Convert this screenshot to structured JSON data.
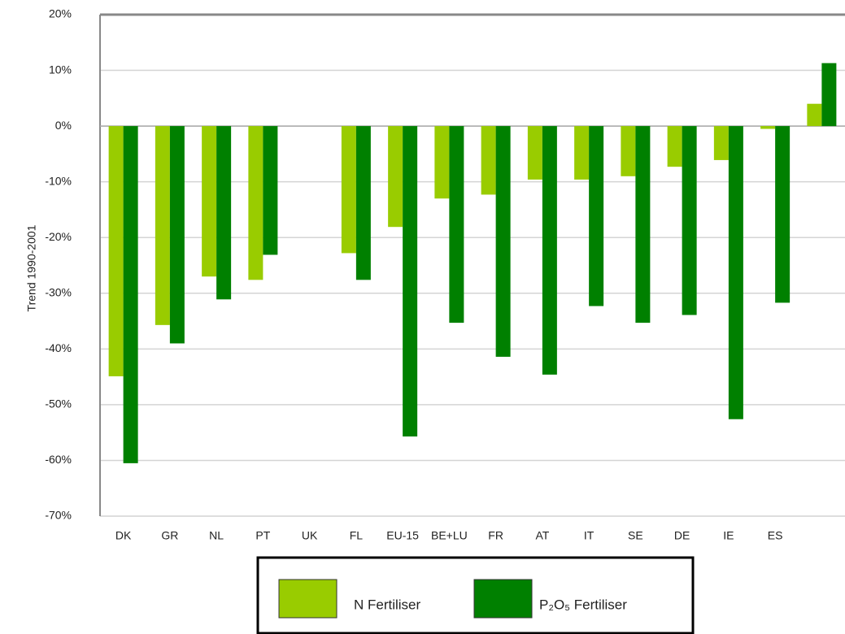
{
  "chart_data": {
    "type": "bar",
    "y_label": "Trend 1990-2001",
    "categories": [
      "DK",
      "GR",
      "NL",
      "PT",
      "UK",
      "FL",
      "EU-15",
      "BE+LU",
      "FR",
      "AT",
      "IT",
      "SE",
      "DE",
      "IE",
      "ES",
      null
    ],
    "series": [
      {
        "name": "N Fertiliser",
        "color": "#99cc00",
        "values": [
          -44.9,
          -35.7,
          -27.0,
          -27.6,
          null,
          -22.8,
          -18.1,
          -13.0,
          -12.3,
          -9.6,
          -9.6,
          -9.0,
          -7.3,
          -6.1,
          -0.5,
          4.0
        ]
      },
      {
        "name": "P₂O₅ Fertiliser",
        "color": "#008000",
        "values": [
          -60.5,
          -39.0,
          -31.1,
          -23.1,
          null,
          -27.6,
          -55.7,
          -35.3,
          -41.4,
          -44.6,
          -32.3,
          -35.3,
          -33.9,
          -52.6,
          -31.7,
          11.3
        ]
      }
    ],
    "ylim": [
      -70,
      20
    ],
    "yticks": [
      {
        "value": -70,
        "label": "-70%"
      },
      {
        "value": -60,
        "label": "-60%"
      },
      {
        "value": -50,
        "label": "-50%"
      },
      {
        "value": -40,
        "label": "-40%"
      },
      {
        "value": -30,
        "label": "-30%"
      },
      {
        "value": -20,
        "label": "-20%"
      },
      {
        "value": -10,
        "label": "-10%"
      },
      {
        "value": 0,
        "label": "0%"
      },
      {
        "value": 10,
        "label": "10%"
      },
      {
        "value": 20,
        "label": "20%"
      }
    ],
    "grid": true
  }
}
